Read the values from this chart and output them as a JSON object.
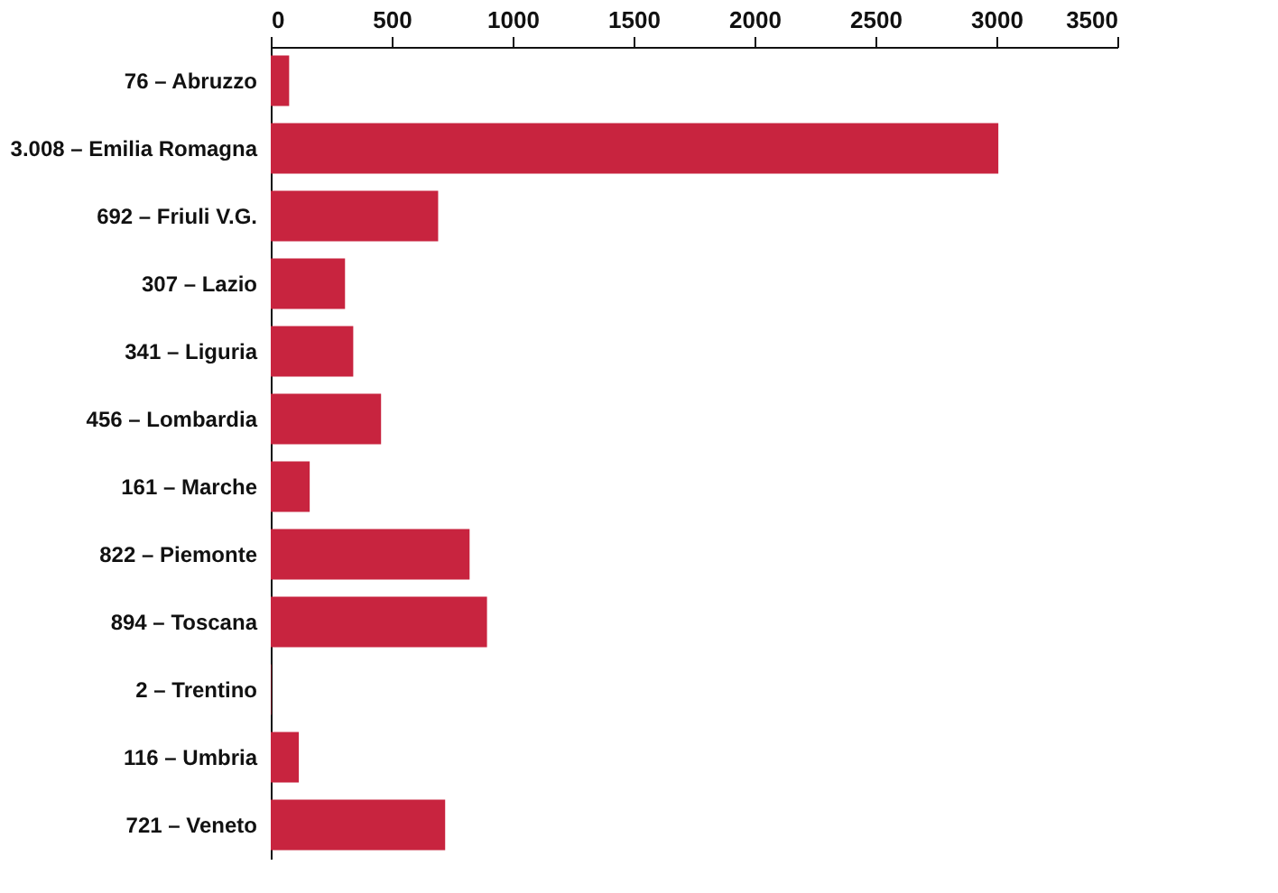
{
  "chart_data": {
    "type": "bar",
    "orientation": "horizontal",
    "categories": [
      "76 – Abruzzo",
      "3.008 – Emilia Romagna",
      "692 – Friuli V.G.",
      "307 – Lazio",
      "341 – Liguria",
      "456 – Lombardia",
      "161 – Marche",
      "822 – Piemonte",
      "894 – Toscana",
      "2 – Trentino",
      "116 – Umbria",
      "721 – Veneto"
    ],
    "values": [
      76,
      3008,
      692,
      307,
      341,
      456,
      161,
      822,
      894,
      2,
      116,
      721
    ],
    "color": "#c8243f",
    "xlim": [
      0,
      3500
    ],
    "xticks": [
      0,
      500,
      1000,
      1500,
      2000,
      2500,
      3000,
      3500
    ],
    "grid": false
  }
}
